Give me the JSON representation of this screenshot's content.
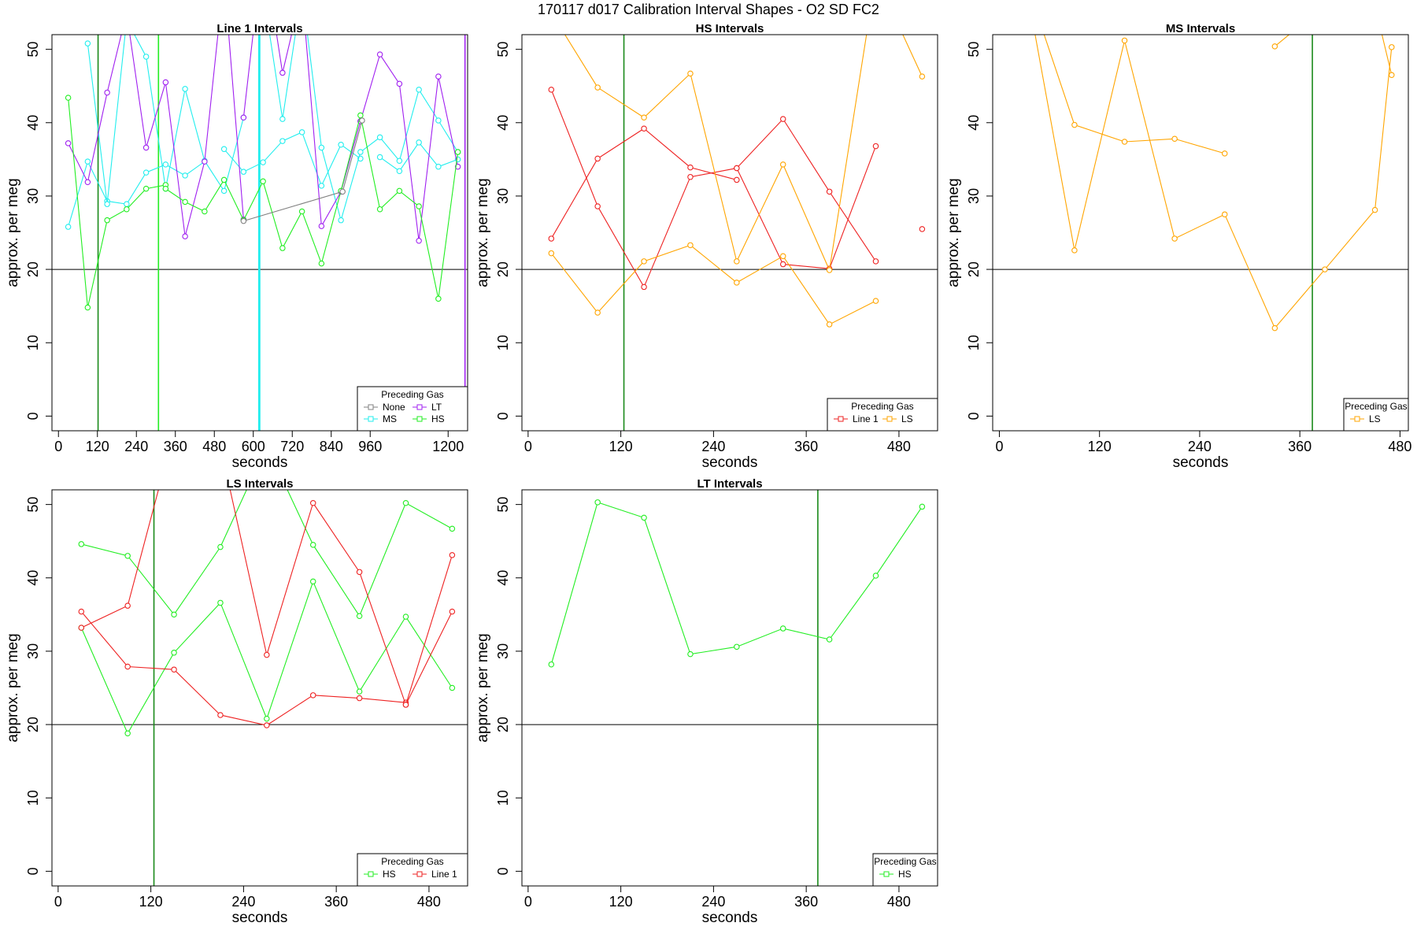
{
  "title": "170117   d017   Calibration Interval Shapes - O2 SD FC2",
  "colors": {
    "Line 1": "#ee2222",
    "HS": "#22ee22",
    "MS": "#22eeee",
    "LS": "#ffa500",
    "LT": "#a020f0",
    "None": "#808080",
    "ref": "#000000",
    "vline": "#1a8a1a",
    "vline_bright": "#22ee22",
    "vline_cyan": "#22eeee",
    "vline_purple": "#a020f0"
  },
  "chart_data": [
    {
      "type": "line",
      "title": "Line 1 Intervals",
      "xlabel": "seconds",
      "ylabel": "approx. per meg",
      "xlim": [
        -20,
        1260
      ],
      "ylim": [
        -2,
        52
      ],
      "xticks": [
        0,
        120,
        240,
        360,
        480,
        600,
        720,
        840,
        960,
        1200
      ],
      "yticks": [
        0,
        10,
        20,
        30,
        40,
        50
      ],
      "hline": 20,
      "vlines": [
        {
          "x": 122,
          "color": "vline"
        },
        {
          "x": 308,
          "color": "vline_bright"
        },
        {
          "x": 617,
          "color": "vline_cyan"
        },
        {
          "x": 620,
          "color": "vline_cyan"
        },
        {
          "x": 1252,
          "color": "vline_purple"
        }
      ],
      "legend": {
        "title": "Preceding Gas",
        "position": "bottom-right",
        "columns": 2,
        "entries": [
          "None",
          "LT",
          "MS",
          "HS"
        ]
      },
      "series": [
        {
          "name": "MS",
          "x": [
            30,
            90,
            150,
            210,
            270,
            330,
            390,
            450
          ],
          "y": [
            25.8,
            34.7,
            29.3,
            28.9,
            33.2,
            34.3,
            32.8,
            34.7
          ]
        },
        {
          "name": "MS",
          "x": [
            90,
            150,
            210,
            270,
            330,
            390,
            450,
            510,
            570
          ],
          "y": [
            50.8,
            28.9,
            54,
            49,
            31,
            44.6,
            34.8,
            30.7,
            40.7
          ]
        },
        {
          "name": "MS",
          "x": [
            510,
            570,
            630,
            690,
            750,
            810,
            870,
            930
          ],
          "y": [
            36.4,
            33.3,
            34.6,
            37.5,
            38.7,
            31.4,
            37,
            35.1
          ]
        },
        {
          "name": "MS",
          "x": [
            630,
            690,
            750,
            810,
            870,
            930,
            990,
            1050,
            1110,
            1170,
            1230
          ],
          "y": [
            58,
            40.5,
            58,
            36.6,
            26.7,
            36,
            38,
            34.8,
            44.5,
            40.3,
            36
          ]
        },
        {
          "name": "MS",
          "x": [
            990,
            1050,
            1110,
            1170,
            1230
          ],
          "y": [
            35.3,
            33.4,
            37.3,
            34,
            35
          ]
        },
        {
          "name": "LT",
          "x": [
            30,
            90,
            150,
            210,
            270,
            330,
            390,
            450,
            510,
            570
          ],
          "y": [
            37.2,
            31.9,
            44.1,
            55,
            36.6,
            45.5,
            24.5,
            34.7,
            60,
            26.8
          ]
        },
        {
          "name": "LT",
          "x": [
            570,
            630,
            690,
            750,
            810,
            870,
            930
          ],
          "y": [
            40.7,
            64,
            46.8,
            58,
            25.9,
            30.6,
            40.2
          ]
        },
        {
          "name": "LT",
          "x": [
            930,
            990,
            1050,
            1110,
            1170,
            1230
          ],
          "y": [
            40.2,
            49.3,
            45.3,
            23.9,
            46.3,
            34
          ]
        },
        {
          "name": "HS",
          "x": [
            30,
            90,
            150,
            210,
            270,
            330
          ],
          "y": [
            43.4,
            14.8,
            26.7,
            28.2,
            31,
            31.5
          ]
        },
        {
          "name": "HS",
          "x": [
            330,
            390,
            450,
            510,
            570,
            630,
            690,
            750,
            810,
            870,
            930,
            990,
            1050,
            1110,
            1170,
            1230
          ],
          "y": [
            31,
            29.2,
            27.9,
            32.2,
            26.7,
            32,
            22.9,
            27.9,
            20.8,
            30.7,
            41,
            28.2,
            30.7,
            28.6,
            16,
            36
          ]
        },
        {
          "name": "None",
          "x": [
            570,
            875,
            935
          ],
          "y": [
            26.6,
            30.6,
            40.3
          ]
        }
      ]
    },
    {
      "type": "line",
      "title": "HS Intervals",
      "xlabel": "seconds",
      "ylabel": "approx. per meg",
      "xlim": [
        -8,
        530
      ],
      "ylim": [
        -2,
        52
      ],
      "xticks": [
        0,
        120,
        240,
        360,
        480
      ],
      "yticks": [
        0,
        10,
        20,
        30,
        40,
        50
      ],
      "hline": 20,
      "vlines": [
        {
          "x": 124,
          "color": "vline"
        }
      ],
      "legend": {
        "title": "Preceding Gas",
        "position": "bottom-right",
        "columns": 2,
        "entries": [
          "Line 1",
          "LS"
        ]
      },
      "series": [
        {
          "name": "Line 1",
          "x": [
            30,
            90,
            150,
            210,
            270
          ],
          "y": [
            24.2,
            35.1,
            39.2,
            33.9,
            32.2
          ]
        },
        {
          "name": "Line 1",
          "x": [
            30,
            90,
            150,
            210,
            270,
            330,
            390,
            450
          ],
          "y": [
            44.5,
            28.6,
            17.6,
            32.6,
            33.8,
            20.7,
            20.1,
            36.8
          ]
        },
        {
          "name": "Line 1",
          "x": [
            270,
            330,
            390,
            450
          ],
          "y": [
            33.8,
            40.5,
            30.6,
            21.1
          ]
        },
        {
          "name": "Line 1",
          "x": [
            510
          ],
          "y": [
            25.5
          ]
        },
        {
          "name": "LS",
          "x": [
            30,
            90,
            150,
            210,
            270,
            330,
            390,
            450
          ],
          "y": [
            22.2,
            14.1,
            21.1,
            23.3,
            18.2,
            21.8,
            12.5,
            15.7
          ]
        },
        {
          "name": "LS",
          "x": [
            30,
            90,
            150,
            210,
            270,
            330,
            390,
            450,
            510
          ],
          "y": [
            55,
            44.8,
            40.7,
            46.7,
            21.1,
            34.3,
            19.9,
            60,
            46.3
          ]
        }
      ]
    },
    {
      "type": "line",
      "title": "MS Intervals",
      "xlabel": "seconds",
      "ylabel": "approx. per meg",
      "xlim": [
        -8,
        490
      ],
      "ylim": [
        -2,
        52
      ],
      "xticks": [
        0,
        120,
        240,
        360,
        480
      ],
      "yticks": [
        0,
        10,
        20,
        30,
        40,
        50
      ],
      "hline": 20,
      "vlines": [
        {
          "x": 375,
          "color": "vline"
        }
      ],
      "legend": {
        "title": "Preceding Gas",
        "position": "bottom-right",
        "columns": 1,
        "entries": [
          "LS"
        ]
      },
      "series": [
        {
          "name": "LS",
          "x": [
            30,
            90,
            150,
            210,
            270
          ],
          "y": [
            60,
            39.7,
            37.4,
            37.8,
            35.8
          ]
        },
        {
          "name": "LS",
          "x": [
            30,
            90,
            150,
            210,
            270,
            330,
            390,
            450,
            470
          ],
          "y": [
            60,
            22.6,
            51.2,
            24.2,
            27.5,
            12,
            20,
            28.1,
            50.3
          ]
        },
        {
          "name": "LS",
          "x": [
            330,
            390,
            450,
            470
          ],
          "y": [
            50.4,
            56,
            56,
            46.5
          ]
        }
      ]
    },
    {
      "type": "line",
      "title": "LS Intervals",
      "xlabel": "seconds",
      "ylabel": "approx. per meg",
      "xlim": [
        -8,
        530
      ],
      "ylim": [
        -2,
        52
      ],
      "xticks": [
        0,
        120,
        240,
        360,
        480
      ],
      "yticks": [
        0,
        10,
        20,
        30,
        40,
        50
      ],
      "hline": 20,
      "vlines": [
        {
          "x": 124,
          "color": "vline"
        }
      ],
      "legend": {
        "title": "Preceding Gas",
        "position": "bottom-right",
        "columns": 2,
        "entries": [
          "HS",
          "Line 1"
        ]
      },
      "series": [
        {
          "name": "HS",
          "x": [
            30,
            90,
            150,
            210,
            270,
            330,
            390,
            450,
            510
          ],
          "y": [
            44.6,
            43,
            35,
            44.2,
            58,
            44.5,
            34.8,
            50.2,
            46.7
          ]
        },
        {
          "name": "HS",
          "x": [
            30,
            90,
            150,
            210,
            270,
            330,
            390,
            450,
            510
          ],
          "y": [
            33.2,
            18.8,
            29.8,
            36.6,
            20.8,
            39.5,
            24.5,
            34.7,
            25
          ]
        },
        {
          "name": "Line 1",
          "x": [
            30,
            90,
            150
          ],
          "y": [
            33.2,
            36.2,
            60
          ]
        },
        {
          "name": "Line 1",
          "x": [
            30,
            90,
            150,
            210,
            270,
            330,
            390,
            450
          ],
          "y": [
            35.4,
            27.9,
            27.5,
            21.3,
            19.9,
            24,
            23.6,
            23
          ]
        },
        {
          "name": "Line 1",
          "x": [
            210,
            270,
            330,
            390,
            450,
            510
          ],
          "y": [
            58,
            29.5,
            50.2,
            40.8,
            22.7,
            35.4
          ]
        },
        {
          "name": "Line 1",
          "x": [
            450,
            510
          ],
          "y": [
            22.7,
            43.1
          ]
        }
      ]
    },
    {
      "type": "line",
      "title": "LT Intervals",
      "xlabel": "seconds",
      "ylabel": "approx. per meg",
      "xlim": [
        -8,
        530
      ],
      "ylim": [
        -2,
        52
      ],
      "xticks": [
        0,
        120,
        240,
        360,
        480
      ],
      "yticks": [
        0,
        10,
        20,
        30,
        40,
        50
      ],
      "hline": 20,
      "vlines": [
        {
          "x": 375,
          "color": "vline"
        }
      ],
      "legend": {
        "title": "Preceding Gas",
        "position": "bottom-right",
        "columns": 1,
        "entries": [
          "HS"
        ]
      },
      "series": [
        {
          "name": "HS",
          "x": [
            30,
            90,
            150,
            210,
            270,
            330,
            390,
            450,
            510
          ],
          "y": [
            28.2,
            50.3,
            48.2,
            29.6,
            30.6,
            33.1,
            31.6,
            40.3,
            49.7
          ]
        }
      ]
    }
  ]
}
